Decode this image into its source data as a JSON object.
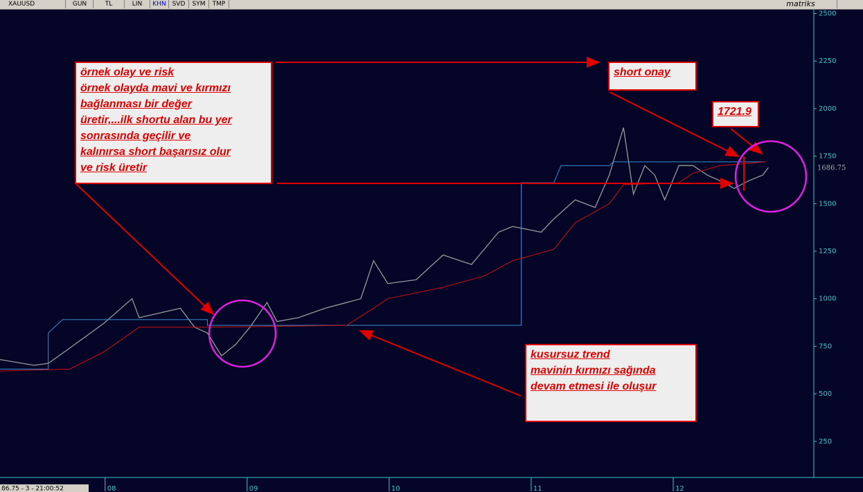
{
  "toolbar": {
    "symbol": "XAUUSD",
    "buttons": [
      "GUN",
      "TL",
      "LIN",
      "KHN",
      "SVD",
      "SYM",
      "TMP"
    ],
    "brand": "matriks"
  },
  "status": "86.75 - 3 - 21:00:52",
  "chart_data": {
    "type": "line",
    "xlim": [
      7.26,
      12.99
    ],
    "xticks": [
      {
        "value": 8,
        "label": "08"
      },
      {
        "value": 9,
        "label": "09"
      },
      {
        "value": 10,
        "label": "10"
      },
      {
        "value": 11,
        "label": "11"
      },
      {
        "value": 12,
        "label": "12"
      }
    ],
    "ylim": [
      60,
      2520
    ],
    "yticks": [
      250,
      500,
      750,
      1000,
      1250,
      1500,
      1750,
      2000,
      2250,
      2500
    ],
    "last_price": 1686.75,
    "series": [
      {
        "name": "XAUUSD",
        "color": "#9a9a9a",
        "x": [
          7.26,
          7.5,
          7.6,
          7.75,
          7.99,
          8.19,
          8.24,
          8.53,
          8.63,
          8.72,
          8.82,
          8.92,
          9.02,
          9.14,
          9.21,
          9.36,
          9.55,
          9.7,
          9.8,
          9.89,
          9.99,
          10.19,
          10.38,
          10.58,
          10.77,
          10.87,
          11.07,
          11.16,
          11.31,
          11.45,
          11.55,
          11.65,
          11.72,
          11.8,
          11.87,
          11.94,
          12.04,
          12.14,
          12.24,
          12.33,
          12.43,
          12.53,
          12.63,
          12.67
        ],
        "values": [
          680,
          650,
          660,
          740,
          870,
          1000,
          900,
          950,
          850,
          820,
          700,
          760,
          850,
          980,
          880,
          900,
          950,
          980,
          1000,
          1200,
          1080,
          1100,
          1230,
          1180,
          1350,
          1380,
          1350,
          1420,
          1520,
          1480,
          1650,
          1900,
          1550,
          1700,
          1650,
          1520,
          1700,
          1700,
          1650,
          1620,
          1580,
          1620,
          1650,
          1690
        ]
      },
      {
        "name": "mavi",
        "color": "#3a8fd8",
        "x": [
          7.26,
          7.6,
          7.6,
          7.7,
          8.72,
          8.72,
          10.93,
          10.93,
          11.16,
          11.21,
          11.55,
          11.58,
          12.65
        ],
        "values": [
          630,
          630,
          820,
          890,
          890,
          860,
          860,
          1610,
          1610,
          1700,
          1700,
          1720,
          1720
        ]
      },
      {
        "name": "kırmızı",
        "color": "#d01010",
        "x": [
          7.26,
          7.75,
          7.99,
          8.24,
          8.72,
          9.7,
          9.89,
          9.99,
          10.38,
          10.67,
          10.87,
          11.16,
          11.31,
          11.55,
          11.65,
          12.04,
          12.14,
          12.33,
          12.65
        ],
        "values": [
          620,
          630,
          720,
          850,
          850,
          860,
          950,
          1000,
          1060,
          1120,
          1200,
          1260,
          1400,
          1500,
          1600,
          1610,
          1660,
          1700,
          1720
        ]
      }
    ],
    "annotations": [
      {
        "lines": [
          "örnek olay ve risk",
          "örnek olayda mavi ve kırmızı",
          "bağlanması bir değer",
          "üretir,...ilk shortu alan bu yer",
          "sonrasında geçilir ve",
          "kalınırsa short başarısız olur",
          "ve risk üretir"
        ]
      },
      {
        "lines": [
          "short onay"
        ]
      },
      {
        "lines": [
          "1721.9"
        ]
      },
      {
        "lines": [
          "kusursuz trend",
          "mavinin kırmızı sağında",
          "devam etmesi ile oluşur"
        ]
      }
    ]
  }
}
